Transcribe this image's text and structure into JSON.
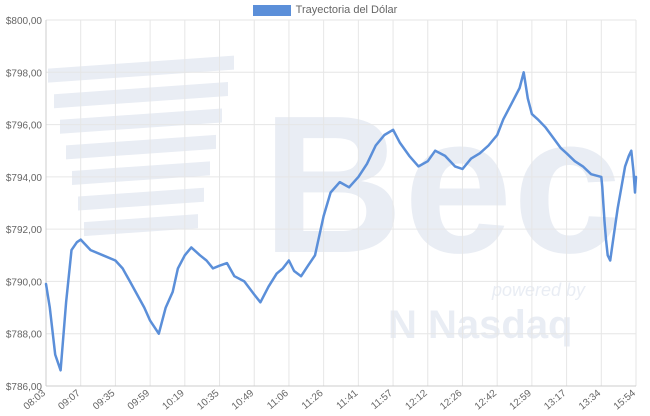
{
  "colors": {
    "series": "#5b8fd9",
    "grid": "#e6e6e6",
    "axis_text": "#666666",
    "watermark": "#e9edf4"
  },
  "watermark": {
    "brand": "Bec",
    "powered_by": "powered by",
    "partner": "Nasdaq"
  },
  "chart_data": {
    "type": "line",
    "legend_position": "top-center",
    "grid": true,
    "ylim": [
      786,
      800
    ],
    "yticks": [
      786,
      788,
      790,
      792,
      794,
      796,
      798,
      800
    ],
    "ytick_labels": [
      "$786,00",
      "$788,00",
      "$790,00",
      "$792,00",
      "$794,00",
      "$796,00",
      "$798,00",
      "$800,00"
    ],
    "x_tick_labels": [
      "08:03",
      "09:07",
      "09:35",
      "09:59",
      "10:19",
      "10:35",
      "10:49",
      "11:06",
      "11:26",
      "11:41",
      "11:57",
      "12:12",
      "12:26",
      "12:42",
      "12:59",
      "13:17",
      "13:34",
      "15:54"
    ],
    "series": [
      {
        "name": "Trayectoria del Dólar",
        "x": [
          "08:03",
          "08:10",
          "08:20",
          "08:30",
          "08:40",
          "08:50",
          "09:00",
          "09:07",
          "09:15",
          "09:25",
          "09:35",
          "09:40",
          "09:45",
          "09:50",
          "09:55",
          "09:59",
          "10:04",
          "10:08",
          "10:12",
          "10:15",
          "10:19",
          "10:22",
          "10:26",
          "10:29",
          "10:32",
          "10:35",
          "10:38",
          "10:41",
          "10:45",
          "10:49",
          "10:52",
          "10:56",
          "11:00",
          "11:03",
          "11:06",
          "11:09",
          "11:13",
          "11:17",
          "11:21",
          "11:26",
          "11:29",
          "11:33",
          "11:37",
          "11:41",
          "11:45",
          "11:49",
          "11:53",
          "11:57",
          "12:00",
          "12:04",
          "12:08",
          "12:12",
          "12:15",
          "12:19",
          "12:23",
          "12:26",
          "12:30",
          "12:34",
          "12:38",
          "12:42",
          "12:45",
          "12:49",
          "12:53",
          "12:55",
          "12:57",
          "12:59",
          "13:02",
          "13:06",
          "13:10",
          "13:14",
          "13:17",
          "13:21",
          "13:25",
          "13:29",
          "13:34",
          "13:38",
          "13:42",
          "13:47",
          "13:53",
          "14:00",
          "14:10",
          "14:25",
          "14:40",
          "14:55",
          "15:10",
          "15:25",
          "15:35",
          "15:44",
          "15:50",
          "15:54"
        ],
        "values": [
          789.9,
          789.0,
          787.2,
          786.6,
          789.2,
          791.2,
          791.5,
          791.6,
          791.2,
          791.0,
          790.8,
          790.5,
          790.0,
          789.5,
          789.0,
          788.5,
          788.0,
          789.0,
          789.6,
          790.5,
          791.0,
          791.3,
          791.0,
          790.8,
          790.5,
          790.6,
          790.7,
          790.2,
          790.0,
          789.5,
          789.2,
          789.8,
          790.3,
          790.5,
          790.8,
          790.4,
          790.2,
          790.6,
          791.0,
          792.5,
          793.4,
          793.8,
          793.6,
          794.0,
          794.5,
          795.2,
          795.6,
          795.8,
          795.3,
          794.8,
          794.4,
          794.6,
          795.0,
          794.8,
          794.4,
          794.3,
          794.7,
          794.9,
          795.2,
          795.6,
          796.2,
          796.8,
          797.4,
          798.0,
          797.0,
          796.4,
          796.2,
          795.9,
          795.5,
          795.1,
          794.9,
          794.6,
          794.4,
          794.1,
          794.0,
          793.6,
          793.0,
          792.3,
          791.6,
          791.0,
          790.8,
          791.8,
          792.8,
          793.6,
          794.4,
          794.8,
          795.0,
          794.2,
          793.4,
          794.0
        ]
      }
    ]
  }
}
